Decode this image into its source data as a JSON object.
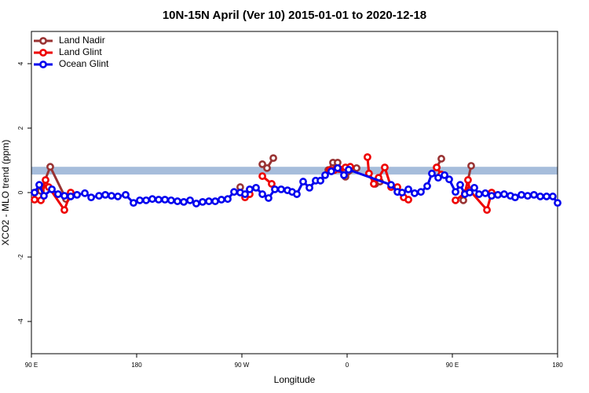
{
  "chart_data": {
    "type": "line",
    "title": "10N-15N April (Ver 10)   2015-01-01 to 2020-12-18",
    "xlabel": "Longitude",
    "ylabel": "XCO2 - MLO trend (ppm)",
    "xlim": [
      90,
      540
    ],
    "ylim": [
      -5,
      5
    ],
    "xticks": [
      {
        "value": 90,
        "label": "90 E"
      },
      {
        "value": 180,
        "label": "180"
      },
      {
        "value": 270,
        "label": "90 W"
      },
      {
        "value": 360,
        "label": "0"
      },
      {
        "value": 450,
        "label": "90 E"
      },
      {
        "value": 540,
        "label": "180"
      }
    ],
    "yticks": [
      -4,
      -2,
      0,
      2,
      4
    ],
    "band": [
      0.56,
      0.8
    ],
    "band_color": "#a6bddb",
    "legend": "top-left",
    "series": [
      {
        "name": "Land Nadir",
        "color": "#993333",
        "x": [
          92.7,
          98.1,
          106.1,
          119.6,
          null,
          268.6,
          null,
          287.5,
          291.5,
          296.9,
          null,
          343.9,
          347.9,
          351.9,
          358.6,
          368.1,
          null,
          378.7,
          384.1,
          388.1,
          null,
          436.6,
          440.6,
          null,
          459.4,
          466.1
        ],
        "values": [
          0,
          0.05,
          0.8,
          -0.2,
          null,
          0.17,
          null,
          0.88,
          0.76,
          1.07,
          null,
          0.7,
          0.93,
          0.93,
          0.49,
          0.76,
          null,
          0.59,
          0.27,
          0.34,
          null,
          0.78,
          1.05,
          null,
          -0.24,
          0.83
        ]
      },
      {
        "name": "Land Glint",
        "color": "#ee0000",
        "x": [
          92.7,
          98.1,
          102.1,
          104.8,
          118.2,
          123.6,
          null,
          272.7,
          276.7,
          null,
          287.5,
          295.5,
          null,
          345.2,
          349.2,
          353.3,
          358.6,
          362.7,
          null,
          377.4,
          378.7,
          382.8,
          386.9,
          392.2,
          397.6,
          403.0,
          408.4,
          412.4,
          null,
          436.6,
          440.6,
          null,
          452.7,
          460.7,
          463.4,
          464.8,
          479.6,
          483.6
        ],
        "values": [
          -0.22,
          -0.24,
          0.39,
          0.17,
          -0.54,
          0,
          null,
          -0.15,
          -0.05,
          null,
          0.51,
          0.27,
          null,
          0.7,
          0.7,
          0.73,
          0.78,
          0.8,
          null,
          1.1,
          0.59,
          0.27,
          0.46,
          0.78,
          0.17,
          0.17,
          -0.15,
          -0.22,
          null,
          0.78,
          0.56,
          null,
          -0.24,
          -0.02,
          0.39,
          0.07,
          -0.54,
          0
        ]
      },
      {
        "name": "Ocean Glint",
        "color": "#0000ee",
        "x": [
          92.7,
          96.7,
          100.7,
          107.5,
          112.8,
          118.2,
          123.6,
          129.0,
          135.7,
          141.1,
          147.8,
          153.2,
          158.5,
          163.9,
          170.6,
          177.3,
          182.7,
          188.1,
          193.4,
          198.8,
          204.2,
          209.5,
          214.9,
          220.3,
          225.7,
          231.0,
          236.4,
          241.8,
          247.2,
          252.5,
          257.9,
          263.3,
          268.6,
          272.7,
          276.7,
          282.1,
          287.5,
          292.8,
          298.2,
          303.6,
          309.0,
          313.0,
          317.0,
          322.4,
          327.8,
          333.1,
          337.2,
          341.2,
          346.5,
          351.9,
          357.3,
          361.3,
          397.6,
          403.0,
          407.0,
          412.4,
          417.7,
          423.1,
          428.5,
          432.5,
          437.9,
          443.3,
          447.3,
          452.7,
          456.7,
          460.7,
          464.8,
          468.8,
          472.8,
          478.2,
          483.6,
          488.9,
          494.3,
          499.7,
          503.7,
          509.1,
          514.4,
          519.8,
          525.2,
          530.6,
          535.9,
          540
        ],
        "values": [
          0,
          0.24,
          -0.1,
          0.1,
          -0.05,
          -0.1,
          -0.12,
          -0.07,
          -0.02,
          -0.15,
          -0.1,
          -0.07,
          -0.1,
          -0.12,
          -0.07,
          -0.32,
          -0.24,
          -0.24,
          -0.2,
          -0.22,
          -0.22,
          -0.24,
          -0.27,
          -0.29,
          -0.24,
          -0.34,
          -0.29,
          -0.27,
          -0.27,
          -0.22,
          -0.2,
          0.02,
          0,
          -0.05,
          0.1,
          0.15,
          -0.05,
          -0.17,
          0.1,
          0.1,
          0.07,
          0.02,
          -0.05,
          0.34,
          0.15,
          0.37,
          0.37,
          0.54,
          0.66,
          0.76,
          0.54,
          0.71,
          0.24,
          0.02,
          0,
          0.1,
          -0.02,
          0.02,
          0.2,
          0.59,
          0.46,
          0.54,
          0.41,
          0.02,
          0.24,
          -0.05,
          0,
          0.15,
          -0.05,
          -0.02,
          -0.1,
          -0.07,
          -0.05,
          -0.1,
          -0.15,
          -0.07,
          -0.1,
          -0.07,
          -0.12,
          -0.12,
          -0.12,
          -0.32
        ]
      }
    ]
  }
}
